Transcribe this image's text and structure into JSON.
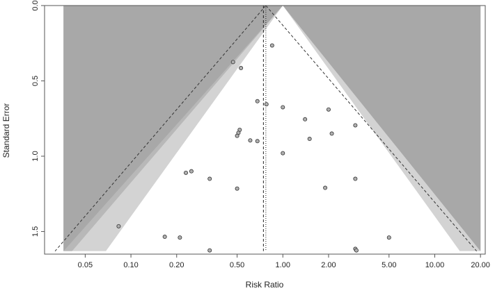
{
  "chart_data": {
    "type": "scatter",
    "subtype": "contour-enhanced funnel plot",
    "xlabel": "Risk Ratio",
    "ylabel": "Standard Error",
    "x_scale": "log",
    "y_reversed": true,
    "xlim": [
      0.027,
      21.5
    ],
    "ylim": [
      0,
      1.65
    ],
    "x_ticks": [
      {
        "value": 0.05,
        "label": "0.05"
      },
      {
        "value": 0.1,
        "label": "0.10"
      },
      {
        "value": 0.2,
        "label": "0.20"
      },
      {
        "value": 0.5,
        "label": "0.50"
      },
      {
        "value": 1.0,
        "label": "1.00"
      },
      {
        "value": 2.0,
        "label": "2.00"
      },
      {
        "value": 5.0,
        "label": "5.00"
      },
      {
        "value": 10.0,
        "label": "10.00"
      },
      {
        "value": 20.0,
        "label": "20.00"
      }
    ],
    "y_ticks": [
      {
        "value": 0.0,
        "label": "0.0"
      },
      {
        "value": 0.5,
        "label": "0.5"
      },
      {
        "value": 1.0,
        "label": "1.0"
      },
      {
        "value": 1.5,
        "label": "1.5"
      }
    ],
    "shaded_region_x": [
      0.036,
      20.0
    ],
    "shaded_region_se": [
      0,
      1.63
    ],
    "contour_levels": [
      {
        "p": 0.1,
        "z": 1.645,
        "color": "#d3d3d3"
      },
      {
        "p": 0.05,
        "z": 1.96,
        "color": "#b8b8b8"
      },
      {
        "p": 0.01,
        "z": 2.576,
        "color": "#a8a8a8"
      }
    ],
    "outer_background_color": "#f0f0f0",
    "null_value": 1.0,
    "fixed_effect_estimate": 0.773,
    "random_effects_estimate": 0.745,
    "pseudo_ci_z": 1.96,
    "point_color": "#b0b0b0",
    "points": [
      {
        "x": 0.85,
        "y": 0.265
      },
      {
        "x": 0.47,
        "y": 0.375
      },
      {
        "x": 0.53,
        "y": 0.415
      },
      {
        "x": 0.68,
        "y": 0.635
      },
      {
        "x": 0.78,
        "y": 0.655
      },
      {
        "x": 1.0,
        "y": 0.675
      },
      {
        "x": 2.0,
        "y": 0.69
      },
      {
        "x": 1.4,
        "y": 0.755
      },
      {
        "x": 3.0,
        "y": 0.795
      },
      {
        "x": 0.52,
        "y": 0.825
      },
      {
        "x": 0.51,
        "y": 0.845
      },
      {
        "x": 2.1,
        "y": 0.85
      },
      {
        "x": 0.5,
        "y": 0.865
      },
      {
        "x": 1.5,
        "y": 0.885
      },
      {
        "x": 0.61,
        "y": 0.895
      },
      {
        "x": 0.68,
        "y": 0.9
      },
      {
        "x": 1.0,
        "y": 0.98
      },
      {
        "x": 0.25,
        "y": 1.1
      },
      {
        "x": 0.23,
        "y": 1.11
      },
      {
        "x": 0.33,
        "y": 1.15
      },
      {
        "x": 3.0,
        "y": 1.15
      },
      {
        "x": 0.5,
        "y": 1.215
      },
      {
        "x": 1.9,
        "y": 1.21
      },
      {
        "x": 0.083,
        "y": 1.465
      },
      {
        "x": 0.167,
        "y": 1.535
      },
      {
        "x": 0.21,
        "y": 1.54
      },
      {
        "x": 5.0,
        "y": 1.54
      },
      {
        "x": 0.33,
        "y": 1.625
      },
      {
        "x": 3.0,
        "y": 1.615
      },
      {
        "x": 3.05,
        "y": 1.625
      }
    ]
  }
}
